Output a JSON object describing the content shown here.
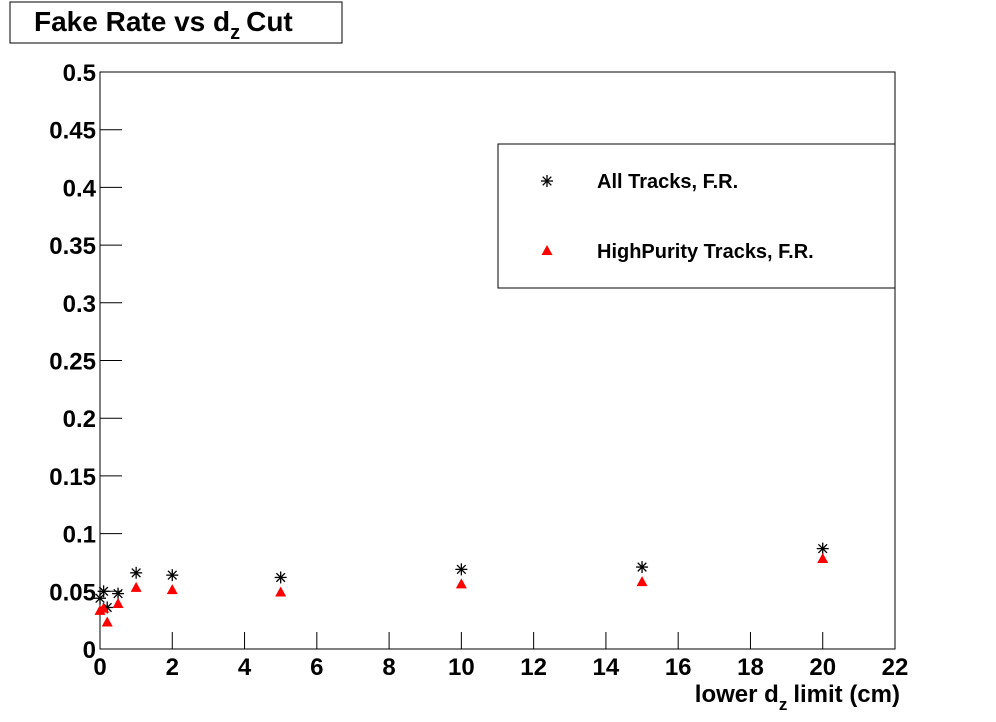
{
  "chart_data": {
    "type": "scatter",
    "title": [
      "Fake Rate vs d",
      "z",
      "Cut"
    ],
    "x_label": [
      "lower d",
      "z",
      "limit (cm)"
    ],
    "xlim": [
      0,
      22
    ],
    "xticks": [
      0,
      2,
      4,
      6,
      8,
      10,
      12,
      14,
      16,
      18,
      20,
      22
    ],
    "ylim": [
      0,
      0.5
    ],
    "yticks": [
      0,
      0.05,
      0.1,
      0.15,
      0.2,
      0.25,
      0.3,
      0.35,
      0.4,
      0.45,
      0.5
    ],
    "legend": "upper right",
    "series": [
      {
        "name": "All Tracks, F.R.",
        "color": "#000000",
        "marker": "star",
        "x": [
          0,
          0.1,
          0.2,
          0.5,
          1,
          2,
          5,
          10,
          15,
          20
        ],
        "values": [
          0.044,
          0.05,
          0.036,
          0.048,
          0.066,
          0.064,
          0.062,
          0.069,
          0.071,
          0.087
        ]
      },
      {
        "name": "HighPurity Tracks, F.R.",
        "color": "#ff0000",
        "marker": "triangle",
        "x": [
          0,
          0.1,
          0.2,
          0.5,
          1,
          2,
          5,
          10,
          15,
          20
        ],
        "values": [
          0.033,
          0.035,
          0.023,
          0.039,
          0.053,
          0.051,
          0.049,
          0.056,
          0.058,
          0.078
        ]
      }
    ]
  }
}
